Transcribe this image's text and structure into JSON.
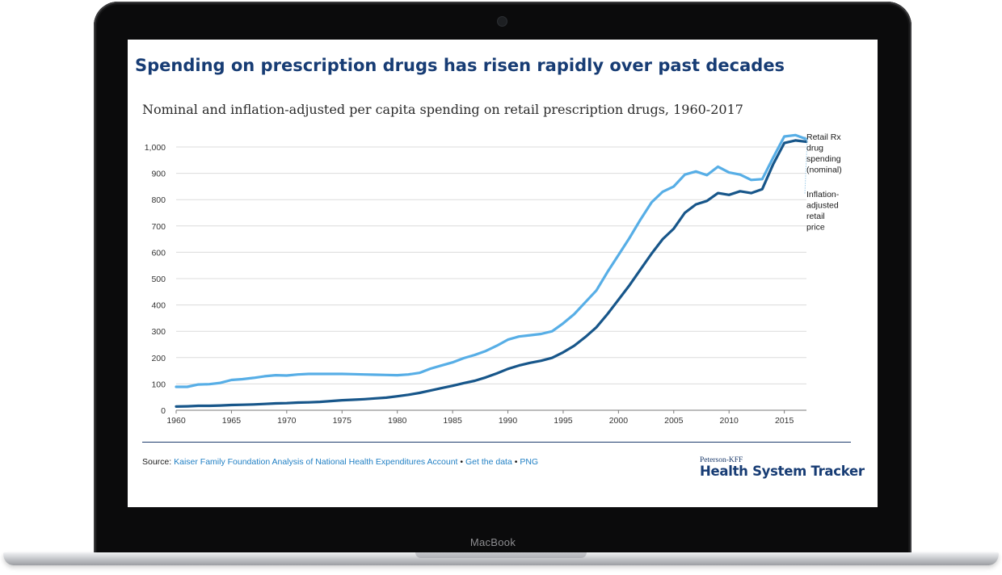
{
  "device": {
    "brand_label": "MacBook"
  },
  "page": {
    "title": "Spending on prescription drugs has risen rapidly over past decades",
    "subtitle": "Nominal and inflation-adjusted per capita spending on retail prescription drugs, 1960-2017"
  },
  "source": {
    "prefix": "Source:",
    "link_text": "Kaiser Family Foundation Analysis of National Health Expenditures Account",
    "sep1": "•",
    "get_data": "Get the data",
    "sep2": "•",
    "png": "PNG"
  },
  "logo": {
    "small": "Peterson-KFF",
    "big": "Health System Tracker"
  },
  "colors": {
    "title": "#173c74",
    "nominal": "#57aee6",
    "adjusted": "#17568a",
    "link": "#1f7fc4",
    "rule": "#1e3c6d"
  },
  "chart_data": {
    "type": "line",
    "title": "Nominal and inflation-adjusted per capita spending on retail prescription drugs, 1960-2017",
    "xlabel": "",
    "ylabel": "",
    "xlim": [
      1960,
      2017
    ],
    "ylim": [
      0,
      1000
    ],
    "yticks": [
      0,
      100,
      200,
      300,
      400,
      500,
      600,
      700,
      800,
      900,
      1000
    ],
    "ytick_labels": [
      "0",
      "100",
      "200",
      "300",
      "400",
      "500",
      "600",
      "700",
      "800",
      "900",
      "1,000"
    ],
    "xticks": [
      1960,
      1965,
      1970,
      1975,
      1980,
      1985,
      1990,
      1995,
      2000,
      2005,
      2010,
      2015
    ],
    "grid": true,
    "legend": "right-end labels",
    "series": [
      {
        "name": "Retail Rx drug spending (nominal)",
        "label_lines": [
          "Retail Rx",
          "drug",
          "spending",
          "(nominal)"
        ],
        "x": [
          1960,
          1961,
          1962,
          1963,
          1964,
          1965,
          1966,
          1967,
          1968,
          1969,
          1970,
          1971,
          1972,
          1973,
          1974,
          1975,
          1976,
          1977,
          1978,
          1979,
          1980,
          1981,
          1982,
          1983,
          1984,
          1985,
          1986,
          1987,
          1988,
          1989,
          1990,
          1991,
          1992,
          1993,
          1994,
          1995,
          1996,
          1997,
          1998,
          1999,
          2000,
          2001,
          2002,
          2003,
          2004,
          2005,
          2006,
          2007,
          2008,
          2009,
          2010,
          2011,
          2012,
          2013,
          2014,
          2015,
          2016,
          2017
        ],
        "values": [
          14,
          15,
          17,
          17,
          18,
          20,
          21,
          22,
          24,
          26,
          27,
          29,
          30,
          32,
          35,
          38,
          40,
          42,
          45,
          48,
          53,
          59,
          66,
          75,
          84,
          93,
          103,
          112,
          125,
          140,
          157,
          170,
          180,
          188,
          199,
          220,
          245,
          278,
          315,
          365,
          420,
          475,
          535,
          595,
          650,
          690,
          750,
          782,
          795,
          825,
          818,
          832,
          825,
          840,
          935,
          1015,
          1025,
          1020
        ],
        "color": "#17568a"
      },
      {
        "name": "Inflation-adjusted retail price",
        "label_lines": [
          "Inflation-",
          "adjusted",
          "retail",
          "price"
        ],
        "x": [
          1960,
          1961,
          1962,
          1963,
          1964,
          1965,
          1966,
          1967,
          1968,
          1969,
          1970,
          1971,
          1972,
          1973,
          1974,
          1975,
          1976,
          1977,
          1978,
          1979,
          1980,
          1981,
          1982,
          1983,
          1984,
          1985,
          1986,
          1987,
          1988,
          1989,
          1990,
          1991,
          1992,
          1993,
          1994,
          1995,
          1996,
          1997,
          1998,
          1999,
          2000,
          2001,
          2002,
          2003,
          2004,
          2005,
          2006,
          2007,
          2008,
          2009,
          2010,
          2011,
          2012,
          2013,
          2014,
          2015,
          2016,
          2017
        ],
        "values": [
          89,
          89,
          98,
          99,
          104,
          115,
          118,
          123,
          129,
          133,
          132,
          136,
          138,
          138,
          138,
          138,
          137,
          136,
          135,
          134,
          133,
          136,
          142,
          158,
          170,
          182,
          198,
          210,
          225,
          245,
          268,
          280,
          285,
          290,
          300,
          330,
          365,
          410,
          455,
          525,
          590,
          655,
          725,
          790,
          830,
          850,
          895,
          907,
          893,
          925,
          903,
          895,
          875,
          878,
          960,
          1040,
          1045,
          1030
        ],
        "color": "#57aee6"
      }
    ]
  }
}
